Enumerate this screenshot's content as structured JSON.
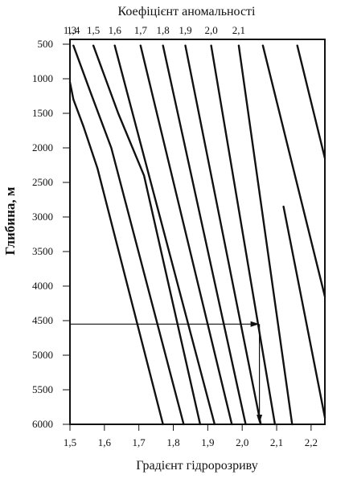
{
  "chart_data": {
    "type": "line",
    "title": "Коефіцієнт аномальності",
    "xlabel": "Градієнт гідророзриву",
    "ylabel": "Глибина, м",
    "xlim": [
      1.5,
      2.24
    ],
    "ylim": [
      500,
      6000
    ],
    "y_inverted": true,
    "x_ticks": [
      "1,5",
      "1,6",
      "1,7",
      "1,8",
      "1,9",
      "2,0",
      "2,1",
      "2,2"
    ],
    "x_tick_values": [
      1.5,
      1.6,
      1.7,
      1.8,
      1.9,
      2.0,
      2.1,
      2.2
    ],
    "y_ticks": [
      "500",
      "1000",
      "1500",
      "2000",
      "2500",
      "3000",
      "3500",
      "4000",
      "4500",
      "5000",
      "5500",
      "6000"
    ],
    "y_tick_values": [
      500,
      1000,
      1500,
      2000,
      2500,
      3000,
      3500,
      4000,
      4500,
      5000,
      5500,
      6000
    ],
    "top_ticks": [
      "1,3",
      "1,4",
      "1,5",
      "1,6",
      "1,7",
      "1,8",
      "1,9",
      "2,0",
      "2,1"
    ],
    "grid": false,
    "series": [
      {
        "points": [
          [
            1.5,
            1050
          ],
          [
            1.51,
            1300
          ],
          [
            1.54,
            1700
          ],
          [
            1.58,
            2300
          ],
          [
            1.77,
            6000
          ]
        ]
      },
      {
        "points": [
          [
            1.51,
            520
          ],
          [
            1.56,
            1200
          ],
          [
            1.62,
            2000
          ],
          [
            1.83,
            6000
          ]
        ]
      },
      {
        "points": [
          [
            1.568,
            520
          ],
          [
            1.64,
            1500
          ],
          [
            1.715,
            2400
          ],
          [
            1.878,
            6000
          ]
        ]
      },
      {
        "points": [
          [
            1.63,
            520
          ],
          [
            1.92,
            6000
          ]
        ]
      },
      {
        "points": [
          [
            1.705,
            520
          ],
          [
            1.97,
            6000
          ]
        ]
      },
      {
        "points": [
          [
            1.77,
            520
          ],
          [
            2.01,
            6000
          ]
        ]
      },
      {
        "points": [
          [
            1.835,
            520
          ],
          [
            2.054,
            6000
          ]
        ]
      },
      {
        "points": [
          [
            1.91,
            520
          ],
          [
            2.095,
            6000
          ]
        ]
      },
      {
        "points": [
          [
            1.99,
            520
          ],
          [
            2.145,
            6000
          ]
        ]
      },
      {
        "points": [
          [
            2.06,
            520
          ],
          [
            2.24,
            4150
          ]
        ]
      },
      {
        "points": [
          [
            2.16,
            520
          ],
          [
            2.24,
            2150
          ]
        ]
      },
      {
        "points": [
          [
            2.12,
            2850
          ],
          [
            2.24,
            5900
          ]
        ]
      }
    ],
    "annotation": {
      "depth": 4550,
      "gradient": 2.05
    }
  }
}
